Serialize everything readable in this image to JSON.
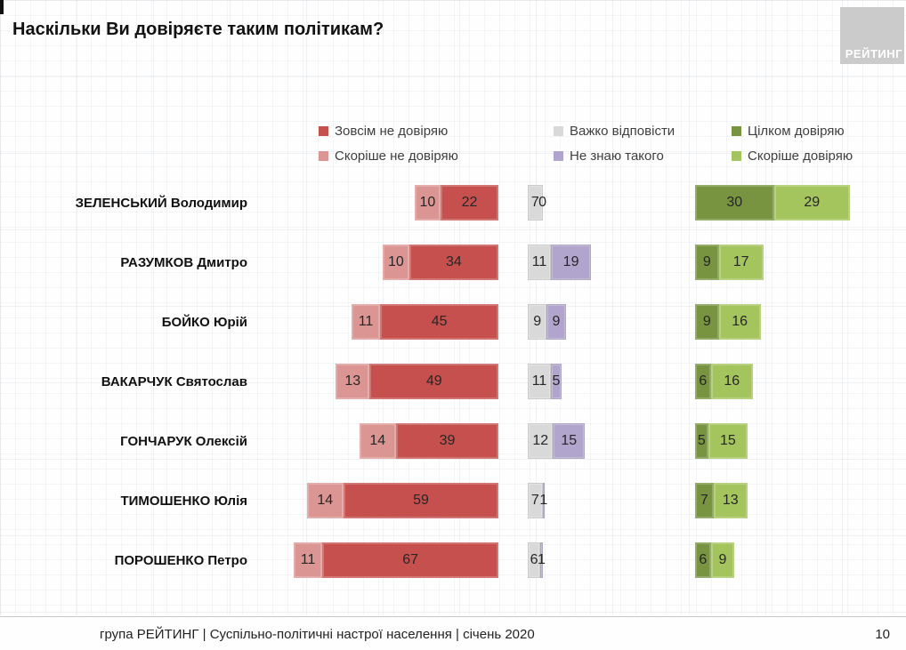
{
  "title": "Наскільки Ви довіряєте таким політикам?",
  "logo": "РЕЙТИНГ",
  "footer": {
    "text": "група РЕЙТИНГ | Суспільно-політичні настрої населення  | січень  2020",
    "page": "10"
  },
  "colors": {
    "strongly_distrust": "#c6504e",
    "rather_distrust": "#db9694",
    "hard_to_say": "#d9d9d9",
    "dont_know": "#b2a5cd",
    "fully_trust": "#789440",
    "rather_trust": "#a4c45e",
    "logo_bg": "#cbcbcb",
    "grid_line": "#e4e7ea"
  },
  "chart_data": {
    "type": "bar",
    "orientation": "horizontal-diverging",
    "unit": "%",
    "title": "Наскільки Ви довіряєте таким політикам?",
    "legend_position": "top",
    "grid": true,
    "categories": [
      "ЗЕЛЕНСЬКИЙ Володимир",
      "РАЗУМКОВ Дмитро",
      "БОЙКО Юрій",
      "ВАКАРЧУК Святослав",
      "ГОНЧАРУК Олексій",
      "ТИМОШЕНКО Юлія",
      "ПОРОШЕНКО Петро"
    ],
    "series": [
      {
        "key": "strongly_distrust",
        "name": "Зовсім не довіряю",
        "color": "#c6504e",
        "values": [
          22,
          34,
          45,
          49,
          39,
          59,
          67
        ]
      },
      {
        "key": "rather_distrust",
        "name": "Скоріше не довіряю",
        "color": "#db9694",
        "values": [
          10,
          10,
          11,
          13,
          14,
          14,
          11
        ]
      },
      {
        "key": "hard_to_say",
        "name": "Важко відповісти",
        "color": "#d9d9d9",
        "values": [
          7,
          11,
          9,
          11,
          12,
          7,
          6
        ]
      },
      {
        "key": "dont_know",
        "name": "Не знаю такого",
        "color": "#b2a5cd",
        "values": [
          0,
          19,
          9,
          5,
          15,
          1,
          1
        ]
      },
      {
        "key": "fully_trust",
        "name": "Цілком довіряю",
        "color": "#789440",
        "values": [
          30,
          9,
          9,
          6,
          5,
          7,
          6
        ]
      },
      {
        "key": "rather_trust",
        "name": "Скоріше довіряю",
        "color": "#a4c45e",
        "values": [
          29,
          17,
          16,
          16,
          15,
          13,
          9
        ]
      }
    ]
  }
}
